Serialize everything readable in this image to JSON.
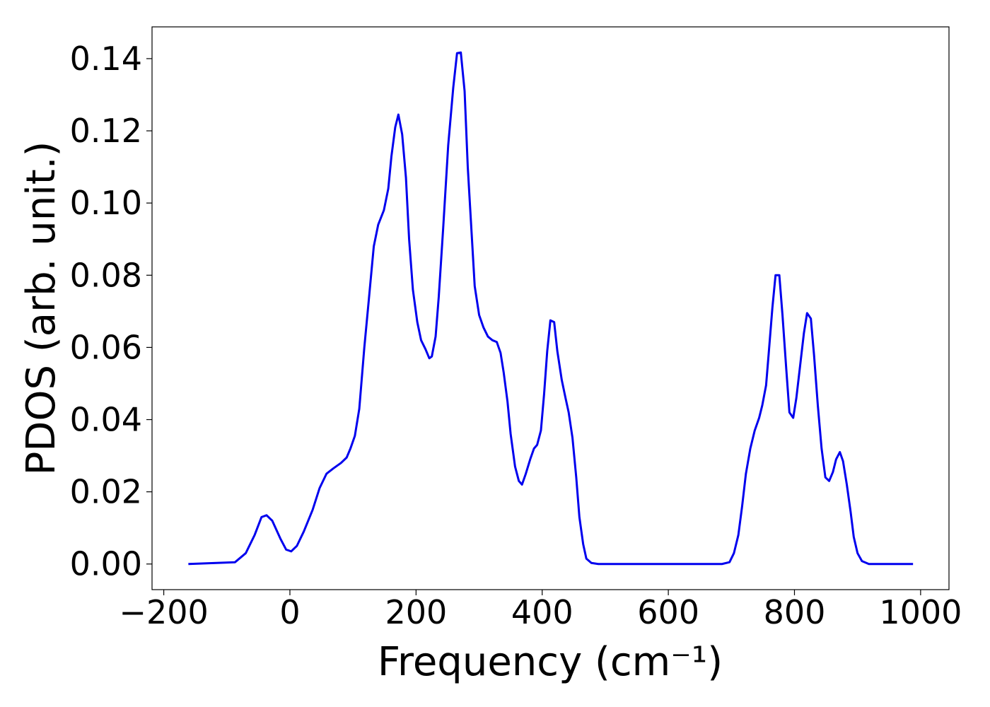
{
  "chart_data": {
    "type": "line",
    "xlabel": "Frequency (cm⁻¹)",
    "ylabel": "PDOS (arb. unit.)",
    "xlim": [
      -218.6,
      1045
    ],
    "ylim": [
      -0.0071,
      0.1488
    ],
    "xticks": [
      {
        "value": -200,
        "label": "−200"
      },
      0,
      200,
      400,
      600,
      800,
      1000
    ],
    "yticks": [
      {
        "value": 0,
        "label": "0.00"
      },
      {
        "value": 0.02,
        "label": "0.02"
      },
      {
        "value": 0.04,
        "label": "0.04"
      },
      {
        "value": 0.06,
        "label": "0.06"
      },
      {
        "value": 0.08,
        "label": "0.08"
      },
      {
        "value": 0.1,
        "label": "0.10"
      },
      {
        "value": 0.12,
        "label": "0.12"
      },
      {
        "value": 0.14,
        "label": "0.14"
      }
    ],
    "series": [
      {
        "color": "#0000ee",
        "x": [
          -161,
          -87,
          -70,
          -56,
          -45,
          -37,
          -28,
          -15,
          -6,
          2,
          11,
          22,
          36,
          47,
          58,
          69,
          81,
          90,
          96,
          103,
          110,
          118,
          125,
          133,
          140,
          149,
          156,
          161,
          167,
          172,
          178,
          184,
          189,
          195,
          202,
          208,
          215,
          221,
          225,
          231,
          236,
          243,
          251,
          259,
          265,
          271,
          277,
          282,
          288,
          293,
          300,
          307,
          314,
          321,
          328,
          334,
          339,
          345,
          350,
          357,
          363,
          368,
          374,
          381,
          387,
          392,
          398,
          403,
          408,
          413,
          419,
          424,
          431,
          437,
          442,
          448,
          454,
          459,
          465,
          470,
          478,
          489,
          685,
          697,
          704,
          711,
          717,
          723,
          730,
          737,
          744,
          749,
          755,
          759,
          765,
          770,
          776,
          781,
          787,
          792,
          798,
          803,
          809,
          815,
          820,
          826,
          831,
          837,
          843,
          849,
          855,
          861,
          866,
          872,
          877,
          883,
          889,
          894,
          900,
          907,
          918,
          988
        ],
        "values": [
          0,
          0.0005,
          0.003,
          0.008,
          0.013,
          0.0135,
          0.012,
          0.007,
          0.004,
          0.0035,
          0.005,
          0.009,
          0.015,
          0.021,
          0.025,
          0.0265,
          0.028,
          0.0295,
          0.032,
          0.0355,
          0.043,
          0.06,
          0.073,
          0.088,
          0.094,
          0.098,
          0.104,
          0.113,
          0.121,
          0.1245,
          0.119,
          0.107,
          0.09,
          0.076,
          0.067,
          0.062,
          0.0595,
          0.057,
          0.0575,
          0.063,
          0.074,
          0.093,
          0.116,
          0.132,
          0.1415,
          0.1417,
          0.131,
          0.11,
          0.092,
          0.077,
          0.069,
          0.0655,
          0.063,
          0.062,
          0.0615,
          0.0585,
          0.053,
          0.045,
          0.036,
          0.027,
          0.023,
          0.022,
          0.025,
          0.029,
          0.032,
          0.033,
          0.037,
          0.047,
          0.059,
          0.0675,
          0.067,
          0.059,
          0.051,
          0.046,
          0.042,
          0.035,
          0.024,
          0.013,
          0.0055,
          0.0015,
          0.0003,
          0,
          0,
          0.0005,
          0.003,
          0.008,
          0.016,
          0.025,
          0.032,
          0.037,
          0.0405,
          0.044,
          0.0495,
          0.058,
          0.071,
          0.08,
          0.08,
          0.069,
          0.054,
          0.042,
          0.0405,
          0.046,
          0.055,
          0.064,
          0.0695,
          0.068,
          0.058,
          0.044,
          0.032,
          0.024,
          0.023,
          0.0255,
          0.029,
          0.031,
          0.0285,
          0.022,
          0.0145,
          0.0075,
          0.003,
          0.0008,
          0,
          0
        ]
      }
    ]
  }
}
